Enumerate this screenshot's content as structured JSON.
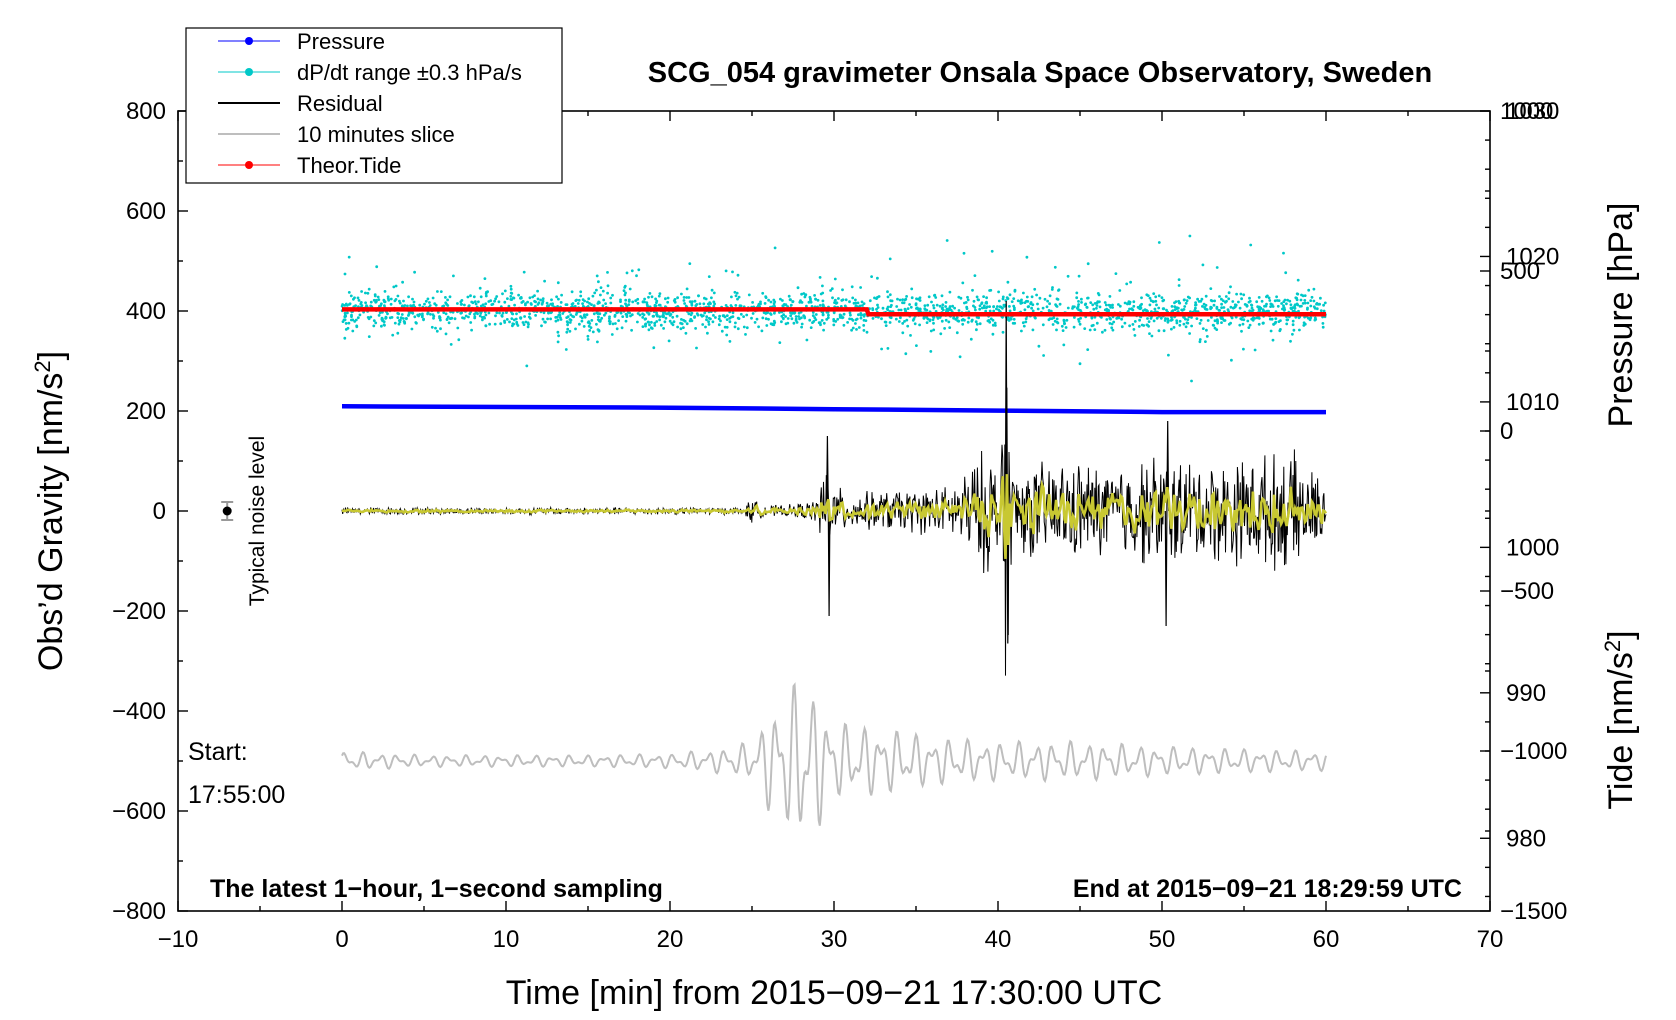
{
  "chart_data": {
    "type": "line",
    "title": "SCG_054 gravimeter Onsala Space Observatory, Sweden",
    "xlabel": "Time [min] from 2015−09−21 17:30:00 UTC",
    "ylabel_left_main": "Obs’d Gravity [nm/s",
    "ylabel_left_sup": "2",
    "ylabel_left_end": "]",
    "ylabel_right_top": "Pressure [hPa]",
    "ylabel_right_bottom_main": "Tide [nm/s",
    "ylabel_right_bottom_sup": "2",
    "ylabel_right_bottom_end": "]",
    "xlim": [
      -10,
      70
    ],
    "ylim": [
      -800,
      800
    ],
    "pressure_axis": {
      "range": [
        975,
        1030
      ],
      "ticks": [
        980,
        990,
        1000,
        1010,
        1020,
        1030
      ]
    },
    "tide_axis": {
      "range": [
        -1500,
        1000
      ],
      "ticks": [
        -1500,
        -1000,
        -500,
        0,
        500,
        1000
      ]
    },
    "x_tick_labels": [
      "−10",
      "0",
      "10",
      "20",
      "30",
      "40",
      "50",
      "60",
      "70"
    ],
    "y_tick_labels": [
      "−800",
      "−600",
      "−400",
      "−200",
      "0",
      "200",
      "400",
      "600",
      "800"
    ],
    "pressure_tick_labels": [
      "980",
      "990",
      "1000",
      "1010",
      "1020",
      "1030"
    ],
    "tide_tick_labels": [
      "−1500",
      "−1000",
      "−500",
      "0",
      "500",
      "1000"
    ],
    "legend_position": "top-left",
    "legend": [
      {
        "label": "Pressure",
        "color": "#0000ff",
        "marker": "dot"
      },
      {
        "label": "dP/dt range ±0.3 hPa/s",
        "color": "#00c8c8",
        "marker": "dot"
      },
      {
        "label": "Residual",
        "color": "#000000",
        "marker": "line"
      },
      {
        "label": "10 minutes slice",
        "color": "#bebebe",
        "marker": "line"
      },
      {
        "label": "Theor.Tide",
        "color": "#ff0000",
        "marker": "dot"
      }
    ],
    "series": [
      {
        "name": "Pressure",
        "axis": "pressure",
        "x": [
          0,
          20,
          30,
          40,
          50,
          60
        ],
        "y": [
          1009.7,
          1009.6,
          1009.5,
          1009.4,
          1009.3,
          1009.3
        ]
      },
      {
        "name": "dP/dt range",
        "axis": "gravity",
        "offset": 400,
        "x_range": [
          0,
          60
        ],
        "spread": 20
      },
      {
        "name": "Residual",
        "axis": "gravity",
        "envelope_x": [
          0,
          5,
          10,
          15,
          20,
          24.5,
          25,
          25.5,
          27,
          29,
          29.5,
          29.8,
          31,
          33,
          35,
          37,
          38.5,
          39.5,
          40,
          40.5,
          40.8,
          41.5,
          43,
          45,
          47,
          50,
          52,
          55,
          58,
          60
        ],
        "envelope_y": [
          8,
          8,
          8,
          8,
          8,
          8,
          30,
          15,
          12,
          25,
          150,
          60,
          40,
          45,
          50,
          55,
          110,
          150,
          80,
          420,
          120,
          100,
          110,
          110,
          100,
          130,
          110,
          120,
          130,
          60
        ]
      },
      {
        "name": "Residual (filtered)",
        "axis": "gravity",
        "color": "#c8c832"
      },
      {
        "name": "Theor.Tide",
        "axis": "tide",
        "x": [
          0,
          32,
          32.1,
          60
        ],
        "y": [
          380,
          380,
          365,
          365
        ]
      },
      {
        "name": "10 minutes slice",
        "axis": "gravity",
        "offset": -500,
        "envelope_x": [
          0,
          5,
          10,
          15,
          20,
          23,
          25,
          26,
          27,
          27.5,
          28,
          28.5,
          29,
          30,
          33,
          36,
          40,
          45,
          50,
          55,
          60
        ],
        "envelope_y": [
          20,
          12,
          12,
          12,
          15,
          25,
          40,
          100,
          150,
          150,
          210,
          150,
          140,
          80,
          70,
          50,
          40,
          40,
          30,
          25,
          20
        ]
      }
    ],
    "noise_marker": {
      "x": -7,
      "y": 0,
      "error": 18,
      "label": "Typical noise level"
    },
    "annotations": {
      "start_label": "Start:",
      "start_time": "17:55:00",
      "footer_left": "The latest 1−hour, 1−second sampling",
      "footer_right": "End at 2015−09−21 18:29:59 UTC"
    }
  }
}
